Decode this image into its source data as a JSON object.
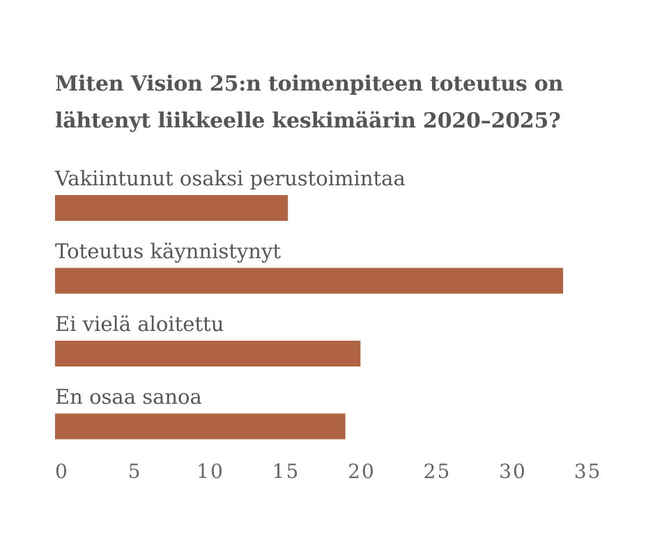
{
  "chart_data": {
    "type": "bar",
    "orientation": "horizontal",
    "title": "Miten Vision 25:n toimenpiteen toteutus on lähtenyt liikkeelle keskimäärin 2020–2025?",
    "categories": [
      "Vakiintunut osaksi perustoimintaa",
      "Toteutus käynnistynyt",
      "Ei vielä aloitettu",
      "En osaa sanoa"
    ],
    "values": [
      15.4,
      33.6,
      20.2,
      19.2
    ],
    "xlim": [
      0,
      35
    ],
    "xticks": [
      "0",
      "5",
      "10",
      "15",
      "20",
      "25",
      "30",
      "35"
    ],
    "grid": false,
    "bar_color": "#b06444"
  }
}
